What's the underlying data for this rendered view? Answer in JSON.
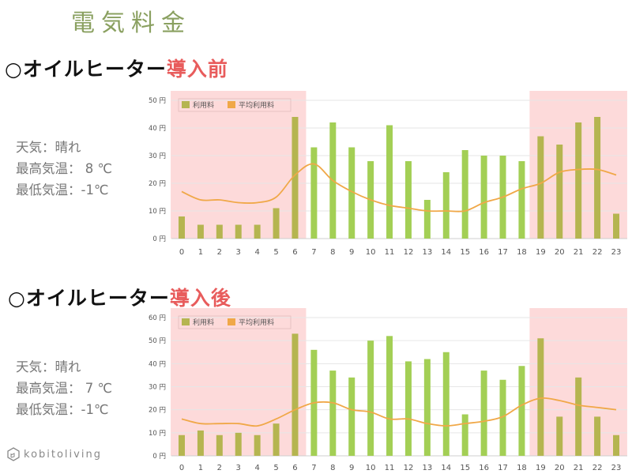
{
  "page": {
    "title": "電気料金",
    "logo_text": "kobitoliving"
  },
  "sections": [
    {
      "heading_prefix": "○オイルヒーター",
      "heading_accent": "導入前",
      "weather": {
        "line1": "天気：晴れ",
        "line2": "最高気温： 8 ℃",
        "line3": "最低気温：-1℃"
      }
    },
    {
      "heading_prefix": "○オイルヒーター",
      "heading_accent": "導入後",
      "weather": {
        "line1": "天気：晴れ",
        "line2": "最高気温： 7 ℃",
        "line3": "最低気温：-1℃"
      }
    }
  ],
  "colors": {
    "title": "#8aa060",
    "accent": "#e85c5c",
    "bar_day": "#a3cf55",
    "bar_night": "#b5b550",
    "avg_line": "#f0a848",
    "night_band": "#fddada"
  },
  "chart_data": [
    {
      "type": "bar",
      "title": "オイルヒーター導入前",
      "categories": [
        "0",
        "1",
        "2",
        "3",
        "4",
        "5",
        "6",
        "7",
        "8",
        "9",
        "10",
        "11",
        "12",
        "13",
        "14",
        "15",
        "16",
        "17",
        "18",
        "19",
        "20",
        "21",
        "22",
        "23"
      ],
      "series": [
        {
          "name": "利用料",
          "type": "bar",
          "values": [
            8,
            5,
            5,
            5,
            5,
            11,
            44,
            33,
            42,
            33,
            28,
            41,
            28,
            14,
            24,
            32,
            30,
            30,
            28,
            37,
            34,
            42,
            44,
            9
          ]
        },
        {
          "name": "平均利用料",
          "type": "line",
          "values": [
            17,
            14,
            14,
            13,
            13,
            15,
            23,
            27,
            21,
            17,
            14,
            12,
            11,
            10,
            10,
            10,
            13,
            15,
            18,
            20,
            24,
            25,
            25,
            23
          ]
        }
      ],
      "ylim": [
        0,
        50
      ],
      "yticks": [
        "0 円",
        "10 円",
        "20 円",
        "30 円",
        "40 円",
        "50 円"
      ],
      "shaded_ranges": [
        [
          0,
          6
        ],
        [
          19,
          23
        ]
      ],
      "legend": [
        "利用料",
        "平均利用料"
      ],
      "legend_position": "top-left",
      "grid": true
    },
    {
      "type": "bar",
      "title": "オイルヒーター導入後",
      "categories": [
        "0",
        "1",
        "2",
        "3",
        "4",
        "5",
        "6",
        "7",
        "8",
        "9",
        "10",
        "11",
        "12",
        "13",
        "14",
        "15",
        "16",
        "17",
        "18",
        "19",
        "20",
        "21",
        "22",
        "23"
      ],
      "series": [
        {
          "name": "利用料",
          "type": "bar",
          "values": [
            9,
            11,
            9,
            10,
            9,
            14,
            53,
            46,
            37,
            34,
            50,
            52,
            41,
            42,
            45,
            18,
            37,
            33,
            39,
            51,
            17,
            34,
            17,
            9
          ]
        },
        {
          "name": "平均利用料",
          "type": "line",
          "values": [
            16,
            14,
            14,
            14,
            13,
            16,
            20,
            23,
            23,
            20,
            19,
            16,
            16,
            14,
            13,
            14,
            15,
            17,
            22,
            25,
            24,
            22,
            21,
            20
          ]
        }
      ],
      "ylim": [
        0,
        60
      ],
      "yticks": [
        "0 円",
        "10 円",
        "20 円",
        "30 円",
        "40 円",
        "50 円",
        "60 円"
      ],
      "shaded_ranges": [
        [
          0,
          6
        ],
        [
          19,
          23
        ]
      ],
      "legend": [
        "利用料",
        "平均利用料"
      ],
      "legend_position": "top-left",
      "grid": true
    }
  ]
}
